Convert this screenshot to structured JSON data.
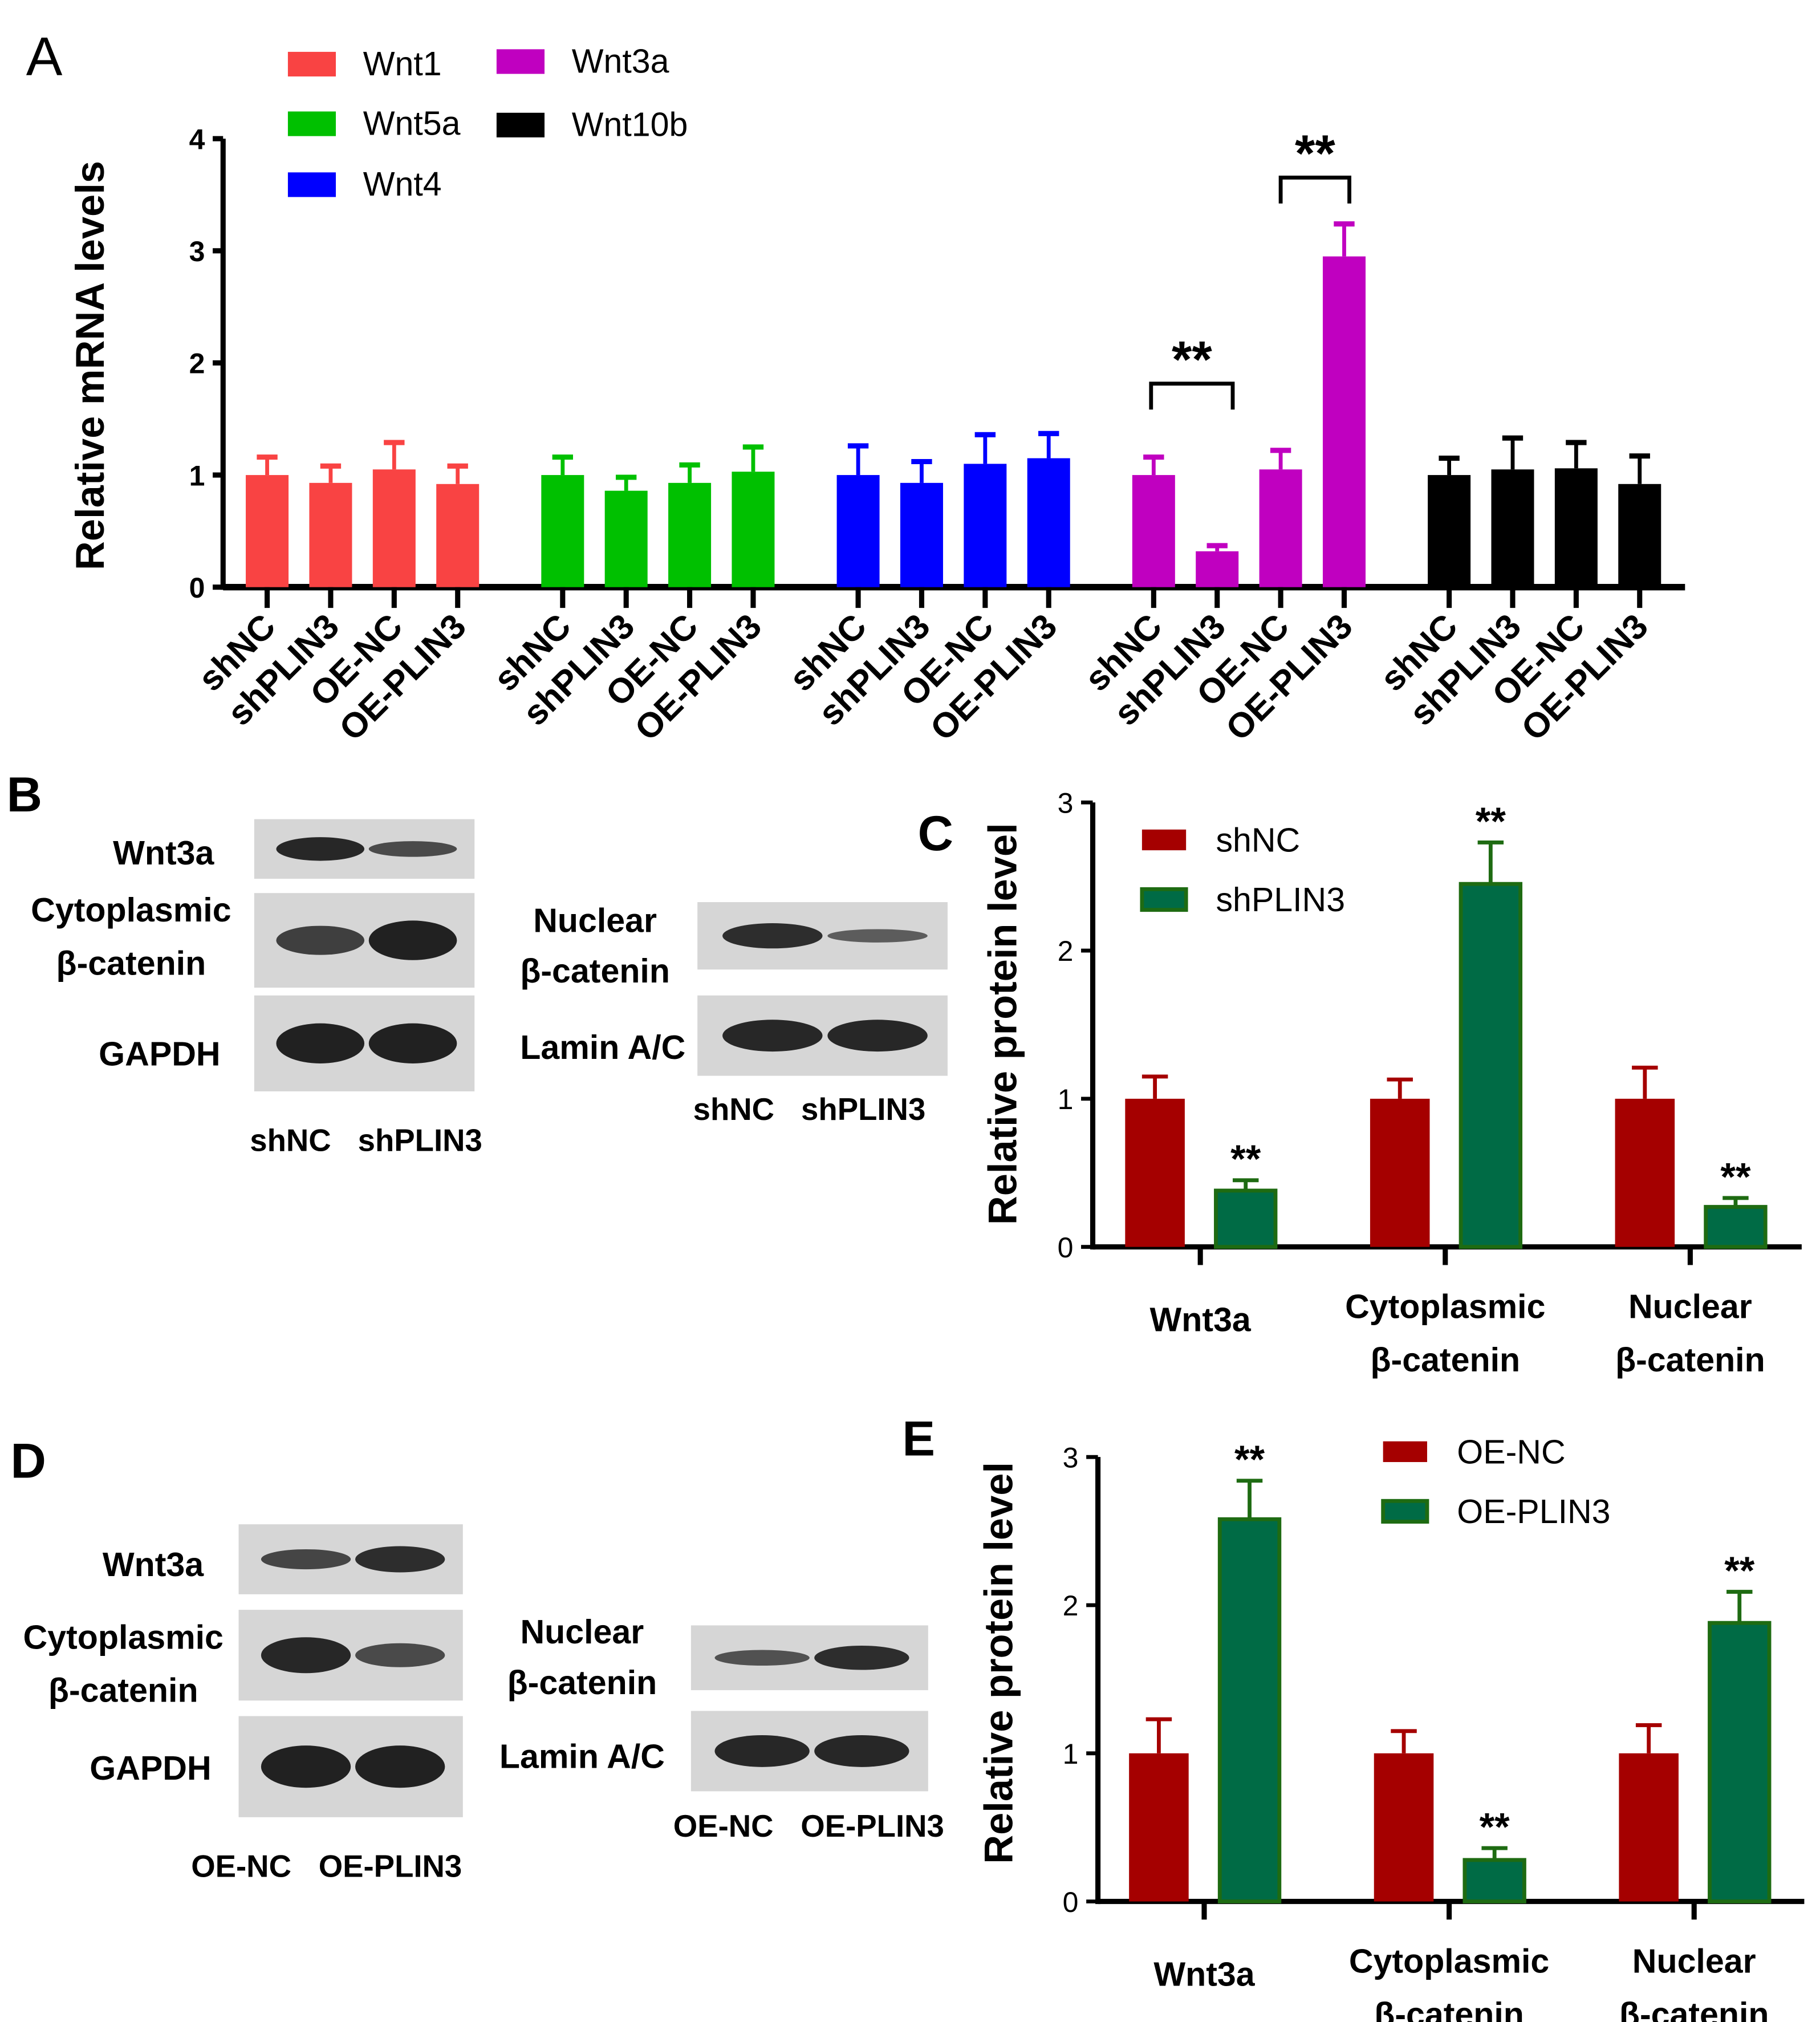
{
  "panel_letters": {
    "A": "A",
    "B": "B",
    "C": "C",
    "D": "D",
    "E": "E"
  },
  "chart_data": [
    {
      "panel": "A",
      "type": "bar",
      "ylabel": "Relative mRNA levels",
      "ylim": [
        0,
        4
      ],
      "yticks": [
        "0",
        "1",
        "2",
        "3",
        "4"
      ],
      "grid": false,
      "legend_position": "top-left",
      "categories": [
        "shNC",
        "shPLIN3",
        "OE-NC",
        "OE-PLIN3"
      ],
      "series": [
        {
          "name": "Wnt1",
          "color": "#F94343",
          "values": [
            1.0,
            0.93,
            1.05,
            0.92
          ],
          "error_upper": [
            1.16,
            1.08,
            1.29,
            1.08
          ]
        },
        {
          "name": "Wnt5a",
          "color": "#00C000",
          "values": [
            1.0,
            0.86,
            0.93,
            1.03
          ],
          "error_upper": [
            1.16,
            0.98,
            1.09,
            1.25
          ]
        },
        {
          "name": "Wnt4",
          "color": "#0000FF",
          "values": [
            1.0,
            0.93,
            1.1,
            1.15
          ],
          "error_upper": [
            1.26,
            1.12,
            1.36,
            1.37
          ]
        },
        {
          "name": "Wnt3a",
          "color": "#C000C0",
          "values": [
            1.0,
            0.32,
            1.05,
            2.95
          ],
          "error_upper": [
            1.16,
            0.37,
            1.22,
            3.24
          ]
        },
        {
          "name": "Wnt10b",
          "color": "#000000",
          "values": [
            1.0,
            1.05,
            1.06,
            0.92
          ],
          "error_upper": [
            1.15,
            1.33,
            1.29,
            1.17
          ]
        }
      ],
      "annotations": [
        {
          "series": "Wnt3a",
          "between": [
            "shNC",
            "shPLIN3"
          ],
          "label": "**"
        },
        {
          "series": "Wnt3a",
          "between": [
            "OE-NC",
            "OE-PLIN3"
          ],
          "label": "**"
        }
      ]
    },
    {
      "panel": "C",
      "type": "bar",
      "ylabel": "Relative protein level",
      "ylim": [
        0,
        3
      ],
      "yticks": [
        "0",
        "1",
        "2",
        "3"
      ],
      "grid": false,
      "legend_position": "top-left",
      "categories": [
        [
          "Wnt3a"
        ],
        [
          "Cytoplasmic",
          "β-catenin"
        ],
        [
          "Nuclear",
          "β-catenin"
        ]
      ],
      "series": [
        {
          "name": "shNC",
          "color": "#A50000",
          "values": [
            1.0,
            1.0,
            1.0
          ],
          "error_upper": [
            1.15,
            1.13,
            1.21
          ],
          "labels": [
            "",
            "",
            ""
          ]
        },
        {
          "name": "shPLIN3",
          "color": "#006B45",
          "edge": "#1E6B12",
          "values": [
            0.38,
            2.45,
            0.27
          ],
          "error_upper": [
            0.45,
            2.73,
            0.33
          ],
          "labels": [
            "**",
            "**",
            "**"
          ]
        }
      ]
    },
    {
      "panel": "E",
      "type": "bar",
      "ylabel": "Relative protein level",
      "ylim": [
        0,
        3
      ],
      "yticks": [
        "0",
        "1",
        "2",
        "3"
      ],
      "grid": false,
      "legend_position": "top-right",
      "categories": [
        [
          "Wnt3a"
        ],
        [
          "Cytoplasmic",
          "β-catenin"
        ],
        [
          "Nuclear",
          "β-catenin"
        ]
      ],
      "series": [
        {
          "name": "OE-NC",
          "color": "#A50000",
          "values": [
            1.0,
            1.0,
            1.0
          ],
          "error_upper": [
            1.23,
            1.15,
            1.19
          ],
          "labels": [
            "",
            "",
            ""
          ]
        },
        {
          "name": "OE-PLIN3",
          "color": "#006B45",
          "edge": "#1E6B12",
          "values": [
            2.58,
            0.28,
            1.88
          ],
          "error_upper": [
            2.84,
            0.36,
            2.09
          ],
          "labels": [
            "**",
            "**",
            "**"
          ]
        }
      ]
    }
  ],
  "blots": {
    "B_left": {
      "rows": [
        [
          "Wnt3a"
        ],
        [
          "Cytoplasmic",
          "β-catenin"
        ],
        [
          "GAPDH"
        ]
      ],
      "lanes": [
        "shNC",
        "shPLIN3"
      ],
      "intensity": [
        [
          0.9,
          0.6
        ],
        [
          0.7,
          0.95
        ],
        [
          0.95,
          0.95
        ]
      ]
    },
    "B_right": {
      "rows": [
        [
          "Nuclear",
          "β-catenin"
        ],
        [
          "Lamin A/C"
        ]
      ],
      "lanes": [
        "shNC",
        "shPLIN3"
      ],
      "intensity": [
        [
          0.85,
          0.45
        ],
        [
          0.9,
          0.9
        ]
      ]
    },
    "D_left": {
      "rows": [
        [
          "Wnt3a"
        ],
        [
          "Cytoplasmic",
          "β-catenin"
        ],
        [
          "GAPDH"
        ]
      ],
      "lanes": [
        "OE-NC",
        "OE-PLIN3"
      ],
      "intensity": [
        [
          0.65,
          0.85
        ],
        [
          0.9,
          0.6
        ],
        [
          0.95,
          0.95
        ]
      ]
    },
    "D_right": {
      "rows": [
        [
          "Nuclear",
          "β-catenin"
        ],
        [
          "Lamin A/C"
        ]
      ],
      "lanes": [
        "OE-NC",
        "OE-PLIN3"
      ],
      "intensity": [
        [
          0.55,
          0.85
        ],
        [
          0.9,
          0.9
        ]
      ]
    }
  }
}
